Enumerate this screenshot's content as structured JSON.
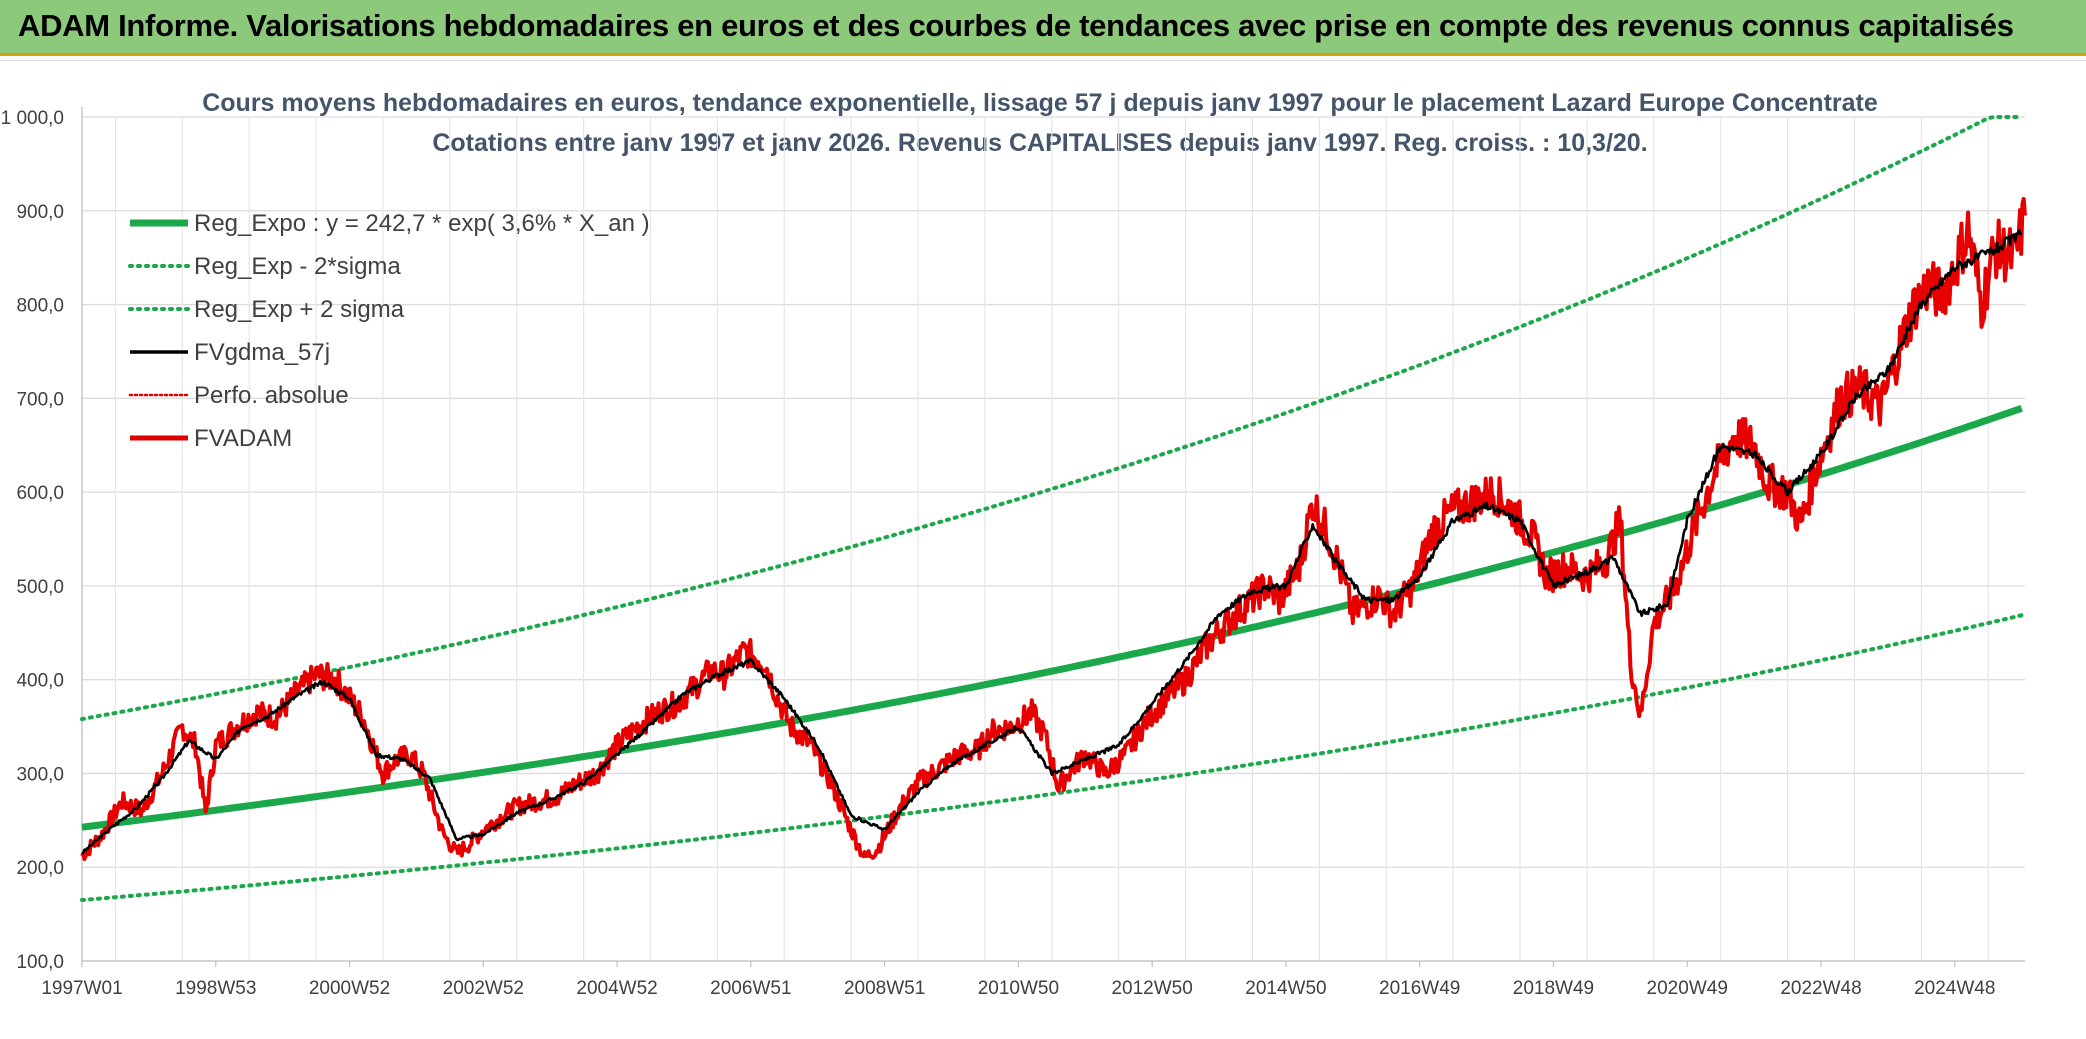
{
  "banner": {
    "title": "ADAM Informe. Valorisations hebdomadaires en euros et des courbes de tendances avec prise en compte des revenus connus capitalisés"
  },
  "chart_data": {
    "type": "line",
    "title": "Cours moyens hebdomadaires en euros, tendance exponentielle, lissage 57 j depuis janv 1997 pour le placement Lazard Europe Concentrate",
    "subtitle": "Cotations entre janv 1997 et janv 2026. Revenus CAPITALISES depuis janv 1997. Reg. croiss. : 10,3/20.",
    "xlabel": "",
    "ylabel": "",
    "ylim": [
      100,
      1000
    ],
    "xlim": [
      1997.0,
      2026.05
    ],
    "y_ticks": [
      "100,0",
      "200,0",
      "300,0",
      "400,0",
      "500,0",
      "600,0",
      "700,0",
      "800,0",
      "900,0",
      "1 000,0"
    ],
    "y_tick_values": [
      100,
      200,
      300,
      400,
      500,
      600,
      700,
      800,
      900,
      1000
    ],
    "x_ticks": [
      "1997W01",
      "1998W53",
      "2000W52",
      "2002W52",
      "2004W52",
      "2006W51",
      "2008W51",
      "2010W50",
      "2012W50",
      "2014W50",
      "2016W49",
      "2018W49",
      "2020W49",
      "2022W48",
      "2024W48"
    ],
    "x_tick_values": [
      1997.0,
      1999.0,
      2001.0,
      2003.0,
      2005.0,
      2007.0,
      2009.0,
      2011.0,
      2013.0,
      2015.0,
      2017.0,
      2019.0,
      2021.0,
      2023.0,
      2025.0
    ],
    "legend": [
      {
        "label": "Reg_Expo : y = 242,7 * exp( 3,6% *  X_an )",
        "color": "#1aa84a",
        "style": "thick"
      },
      {
        "label": "Reg_Exp - 2*sigma",
        "color": "#1aa84a",
        "style": "dotted"
      },
      {
        "label": "Reg_Exp + 2 sigma",
        "color": "#1aa84a",
        "style": "dotted"
      },
      {
        "label": "FVgdma_57j",
        "color": "#000000",
        "style": "solid"
      },
      {
        "label": "Perfo. absolue",
        "color": "#e00000",
        "style": "dotted"
      },
      {
        "label": "FVADAM",
        "color": "#e00000",
        "style": "thick"
      }
    ],
    "series": [
      {
        "name": "Reg_Expo",
        "formula": "242.7*exp(0.036*(t-1997))",
        "x": [
          1997,
          2026.05
        ],
        "values": [
          242.7,
          698
        ]
      },
      {
        "name": "Reg_Exp - 2*sigma",
        "formula": "165*exp(0.036*(t-1997))",
        "x": [
          1997,
          2026.05
        ],
        "values": [
          165,
          473
        ]
      },
      {
        "name": "Reg_Exp + 2 sigma",
        "formula": "358*exp(0.036*(t-1997)), capped at 1000",
        "x": [
          1997,
          2026.05
        ],
        "values": [
          358,
          1000
        ]
      },
      {
        "name": "FVADAM",
        "x": [
          1997.0,
          1997.3,
          1997.6,
          1997.9,
          1998.2,
          1998.5,
          1998.7,
          1998.85,
          1999.0,
          1999.3,
          1999.6,
          1999.9,
          2000.2,
          2000.5,
          2000.8,
          2000.95,
          2001.2,
          2001.5,
          2001.7,
          2001.9,
          2002.1,
          2002.4,
          2002.6,
          2002.8,
          2003.0,
          2003.2,
          2003.5,
          2003.8,
          2004.1,
          2004.4,
          2004.7,
          2005.0,
          2005.3,
          2005.6,
          2005.9,
          2006.2,
          2006.4,
          2006.6,
          2006.9,
          2007.2,
          2007.4,
          2007.6,
          2007.9,
          2008.2,
          2008.5,
          2008.7,
          2008.9,
          2009.2,
          2009.5,
          2009.8,
          2010.1,
          2010.4,
          2010.6,
          2010.9,
          2011.2,
          2011.4,
          2011.6,
          2011.8,
          2012.0,
          2012.3,
          2012.6,
          2012.9,
          2013.2,
          2013.5,
          2013.8,
          2014.1,
          2014.4,
          2014.7,
          2014.9,
          2015.2,
          2015.4,
          2015.6,
          2015.8,
          2016.0,
          2016.2,
          2016.4,
          2016.6,
          2016.9,
          2017.2,
          2017.5,
          2017.8,
          2018.1,
          2018.4,
          2018.7,
          2018.9,
          2019.2,
          2019.5,
          2019.8,
          2020.0,
          2020.15,
          2020.3,
          2020.5,
          2020.8,
          2021.1,
          2021.4,
          2021.7,
          2022.0,
          2022.2,
          2022.5,
          2022.7,
          2022.9,
          2023.1,
          2023.3,
          2023.6,
          2023.9,
          2024.2,
          2024.4,
          2024.6,
          2024.8,
          2025.0,
          2025.2,
          2025.4,
          2025.6,
          2025.9,
          2026.05
        ],
        "values": [
          212,
          235,
          270,
          260,
          300,
          350,
          330,
          258,
          330,
          350,
          365,
          360,
          385,
          405,
          400,
          385,
          360,
          300,
          315,
          320,
          300,
          235,
          215,
          225,
          240,
          250,
          265,
          270,
          275,
          290,
          300,
          330,
          350,
          365,
          375,
          395,
          410,
          405,
          430,
          420,
          380,
          350,
          330,
          290,
          240,
          210,
          220,
          260,
          290,
          305,
          320,
          325,
          345,
          350,
          365,
          340,
          285,
          305,
          320,
          300,
          320,
          355,
          380,
          400,
          435,
          460,
          480,
          500,
          485,
          520,
          590,
          560,
          520,
          470,
          480,
          490,
          470,
          500,
          560,
          580,
          590,
          600,
          580,
          550,
          510,
          520,
          510,
          530,
          570,
          420,
          360,
          460,
          495,
          560,
          620,
          660,
          650,
          610,
          600,
          565,
          620,
          660,
          700,
          710,
          690,
          760,
          800,
          820,
          810,
          840,
          880,
          800,
          860,
          850,
          895
        ]
      },
      {
        "name": "FVgdma_57j",
        "x": [
          1997.0,
          1997.4,
          1997.8,
          1998.2,
          1998.6,
          1999.0,
          1999.4,
          1999.8,
          2000.2,
          2000.6,
          2001.0,
          2001.4,
          2001.8,
          2002.2,
          2002.6,
          2003.0,
          2003.5,
          2004.0,
          2004.5,
          2005.0,
          2005.5,
          2006.0,
          2006.5,
          2007.0,
          2007.5,
          2008.0,
          2008.5,
          2009.0,
          2009.5,
          2010.0,
          2010.5,
          2011.0,
          2011.5,
          2012.0,
          2012.5,
          2013.0,
          2013.5,
          2014.0,
          2014.5,
          2015.0,
          2015.4,
          2015.8,
          2016.2,
          2016.6,
          2017.0,
          2017.5,
          2018.0,
          2018.5,
          2019.0,
          2019.5,
          2019.9,
          2020.3,
          2020.7,
          2021.0,
          2021.5,
          2022.0,
          2022.5,
          2023.0,
          2023.5,
          2024.0,
          2024.5,
          2025.0,
          2025.5,
          2026.0
        ],
        "values": [
          215,
          240,
          262,
          295,
          335,
          315,
          350,
          362,
          382,
          398,
          380,
          320,
          315,
          295,
          230,
          235,
          258,
          272,
          290,
          320,
          352,
          385,
          405,
          420,
          380,
          330,
          255,
          240,
          280,
          310,
          330,
          350,
          300,
          315,
          330,
          375,
          420,
          470,
          495,
          500,
          565,
          520,
          485,
          485,
          510,
          570,
          585,
          570,
          500,
          515,
          530,
          470,
          480,
          570,
          650,
          640,
          600,
          640,
          700,
          730,
          800,
          840,
          855,
          875
        ]
      }
    ]
  }
}
